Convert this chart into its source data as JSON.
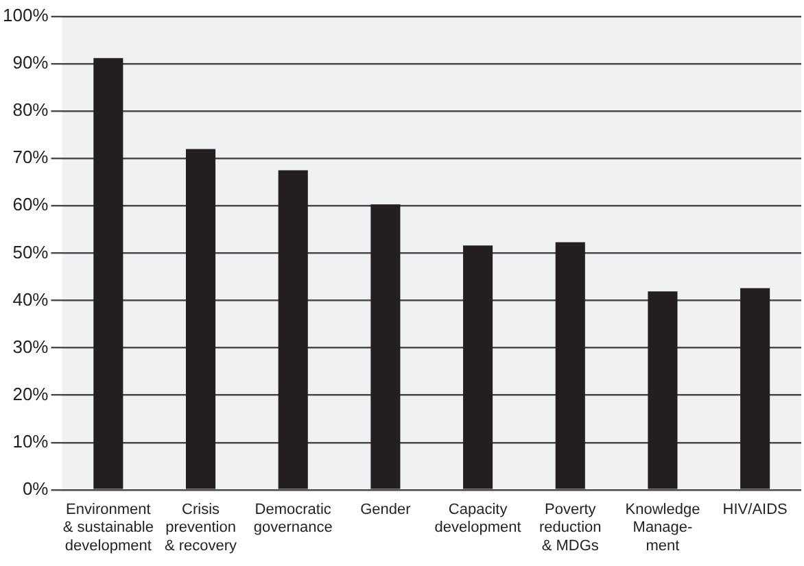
{
  "chart_data": {
    "type": "bar",
    "categories": [
      "Environment\n& sustainable\ndevelopment",
      "Crisis\nprevention\n& recovery",
      "Democratic\ngovernance",
      "Gender",
      "Capacity\ndevelopment",
      "Poverty\nreduction\n& MDGs",
      "Knowledge\nManage-\nment",
      "HIV/AIDS"
    ],
    "values": [
      91.2,
      72,
      67.5,
      60.3,
      51.6,
      52.3,
      41.9,
      42.6
    ],
    "color": "#231f20",
    "ylim": [
      0,
      100
    ],
    "yticks": [
      {
        "value": 0,
        "label": "0%"
      },
      {
        "value": 10,
        "label": "10%"
      },
      {
        "value": 20,
        "label": "20%"
      },
      {
        "value": 30,
        "label": "30%"
      },
      {
        "value": 40,
        "label": "40%"
      },
      {
        "value": 50,
        "label": "50%"
      },
      {
        "value": 60,
        "label": "60%"
      },
      {
        "value": 70,
        "label": "70%"
      },
      {
        "value": 80,
        "label": "80%"
      },
      {
        "value": 90,
        "label": "90%"
      },
      {
        "value": 100,
        "label": "100%"
      }
    ],
    "grid": "y"
  }
}
